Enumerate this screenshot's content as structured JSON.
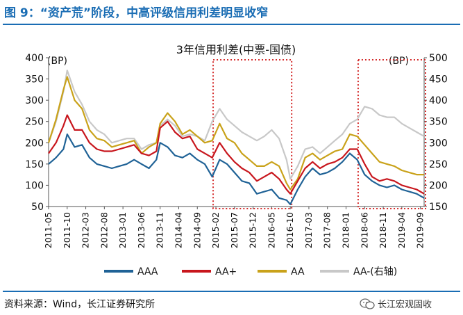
{
  "figure": {
    "title": "图 9：“资产荒”阶段，中高评级信用利差明显收窄",
    "source": "资料来源：Wind，长江证券研究所",
    "watermark": "长江宏观固收"
  },
  "colors": {
    "accent": "#1a6db4",
    "AAA": "#1f6296",
    "AAplus": "#c8161d",
    "AA": "#c9a21a",
    "AAminus": "#c8c8c8",
    "highlight_box": "#d42a2a"
  },
  "chart_data": {
    "type": "line",
    "title": "3年信用利差(中票-国债)",
    "left_axis_unit": "(BP)",
    "right_axis_unit": "(BP)",
    "left_ylim": [
      50,
      400
    ],
    "left_yticks": [
      50,
      100,
      150,
      200,
      250,
      300,
      350,
      400
    ],
    "right_ylim": [
      150,
      500
    ],
    "right_yticks": [
      150,
      200,
      250,
      300,
      350,
      400,
      450,
      500
    ],
    "x_tick_labels": [
      "2011-05",
      "2011-10",
      "2012-03",
      "2012-08",
      "2013-01",
      "2013-06",
      "2013-11",
      "2014-04",
      "2014-09",
      "2015-02",
      "2015-07",
      "2015-12",
      "2016-05",
      "2016-10",
      "2017-03",
      "2017-08",
      "2018-01",
      "2018-06",
      "2018-11",
      "2019-04",
      "2019-09"
    ],
    "x_range": [
      "2011-05",
      "2019-10"
    ],
    "highlight_ranges": [
      [
        "2015-02",
        "2016-10"
      ],
      [
        "2018-05",
        "2019-10"
      ]
    ],
    "x": [
      "2011-05",
      "2011-07",
      "2011-09",
      "2011-10",
      "2011-12",
      "2012-02",
      "2012-04",
      "2012-06",
      "2012-08",
      "2012-10",
      "2012-12",
      "2013-02",
      "2013-04",
      "2013-06",
      "2013-08",
      "2013-10",
      "2013-11",
      "2014-01",
      "2014-03",
      "2014-05",
      "2014-07",
      "2014-09",
      "2014-11",
      "2015-01",
      "2015-03",
      "2015-05",
      "2015-07",
      "2015-09",
      "2015-11",
      "2016-01",
      "2016-03",
      "2016-05",
      "2016-07",
      "2016-09",
      "2016-10",
      "2016-12",
      "2017-02",
      "2017-04",
      "2017-06",
      "2017-08",
      "2017-10",
      "2017-12",
      "2018-02",
      "2018-04",
      "2018-06",
      "2018-08",
      "2018-10",
      "2018-12",
      "2019-02",
      "2019-04",
      "2019-06",
      "2019-08",
      "2019-10"
    ],
    "series": [
      {
        "name": "AAA",
        "axis": "left",
        "values": [
          150,
          165,
          185,
          220,
          190,
          195,
          165,
          150,
          145,
          140,
          145,
          150,
          160,
          150,
          140,
          160,
          200,
          190,
          170,
          165,
          175,
          160,
          150,
          120,
          160,
          150,
          130,
          110,
          105,
          80,
          85,
          90,
          70,
          65,
          55,
          90,
          120,
          140,
          125,
          130,
          140,
          155,
          175,
          160,
          125,
          110,
          100,
          95,
          100,
          90,
          85,
          80,
          70
        ]
      },
      {
        "name": "AA+",
        "axis": "left",
        "values": [
          175,
          200,
          240,
          265,
          230,
          230,
          200,
          185,
          180,
          180,
          185,
          190,
          195,
          175,
          170,
          180,
          235,
          250,
          225,
          210,
          215,
          185,
          175,
          165,
          200,
          175,
          155,
          140,
          130,
          110,
          120,
          130,
          115,
          90,
          80,
          110,
          140,
          155,
          140,
          150,
          155,
          165,
          185,
          185,
          150,
          120,
          110,
          115,
          110,
          100,
          95,
          90,
          80
        ]
      },
      {
        "name": "AA",
        "axis": "left",
        "values": [
          200,
          255,
          325,
          355,
          300,
          280,
          230,
          210,
          205,
          190,
          195,
          200,
          205,
          175,
          190,
          200,
          245,
          270,
          250,
          220,
          230,
          215,
          200,
          205,
          245,
          210,
          200,
          175,
          160,
          145,
          145,
          155,
          145,
          105,
          90,
          115,
          165,
          175,
          160,
          170,
          180,
          185,
          220,
          215,
          195,
          175,
          155,
          150,
          145,
          135,
          130,
          125,
          125
        ]
      },
      {
        "name": "AA-(右轴)",
        "axis": "right",
        "values": [
          300,
          350,
          420,
          470,
          420,
          390,
          350,
          330,
          320,
          300,
          305,
          310,
          310,
          285,
          295,
          300,
          340,
          355,
          340,
          315,
          320,
          315,
          305,
          350,
          380,
          355,
          340,
          325,
          315,
          305,
          315,
          330,
          310,
          260,
          215,
          245,
          285,
          290,
          275,
          290,
          305,
          320,
          345,
          355,
          385,
          380,
          365,
          360,
          360,
          345,
          335,
          325,
          315
        ]
      }
    ],
    "legend": [
      {
        "label": "AAA",
        "color": "#1f6296"
      },
      {
        "label": "AA+",
        "color": "#c8161d"
      },
      {
        "label": "AA",
        "color": "#c9a21a"
      },
      {
        "label": "AA-(右轴)",
        "color": "#c8c8c8"
      }
    ],
    "legend_position": "bottom-center"
  }
}
